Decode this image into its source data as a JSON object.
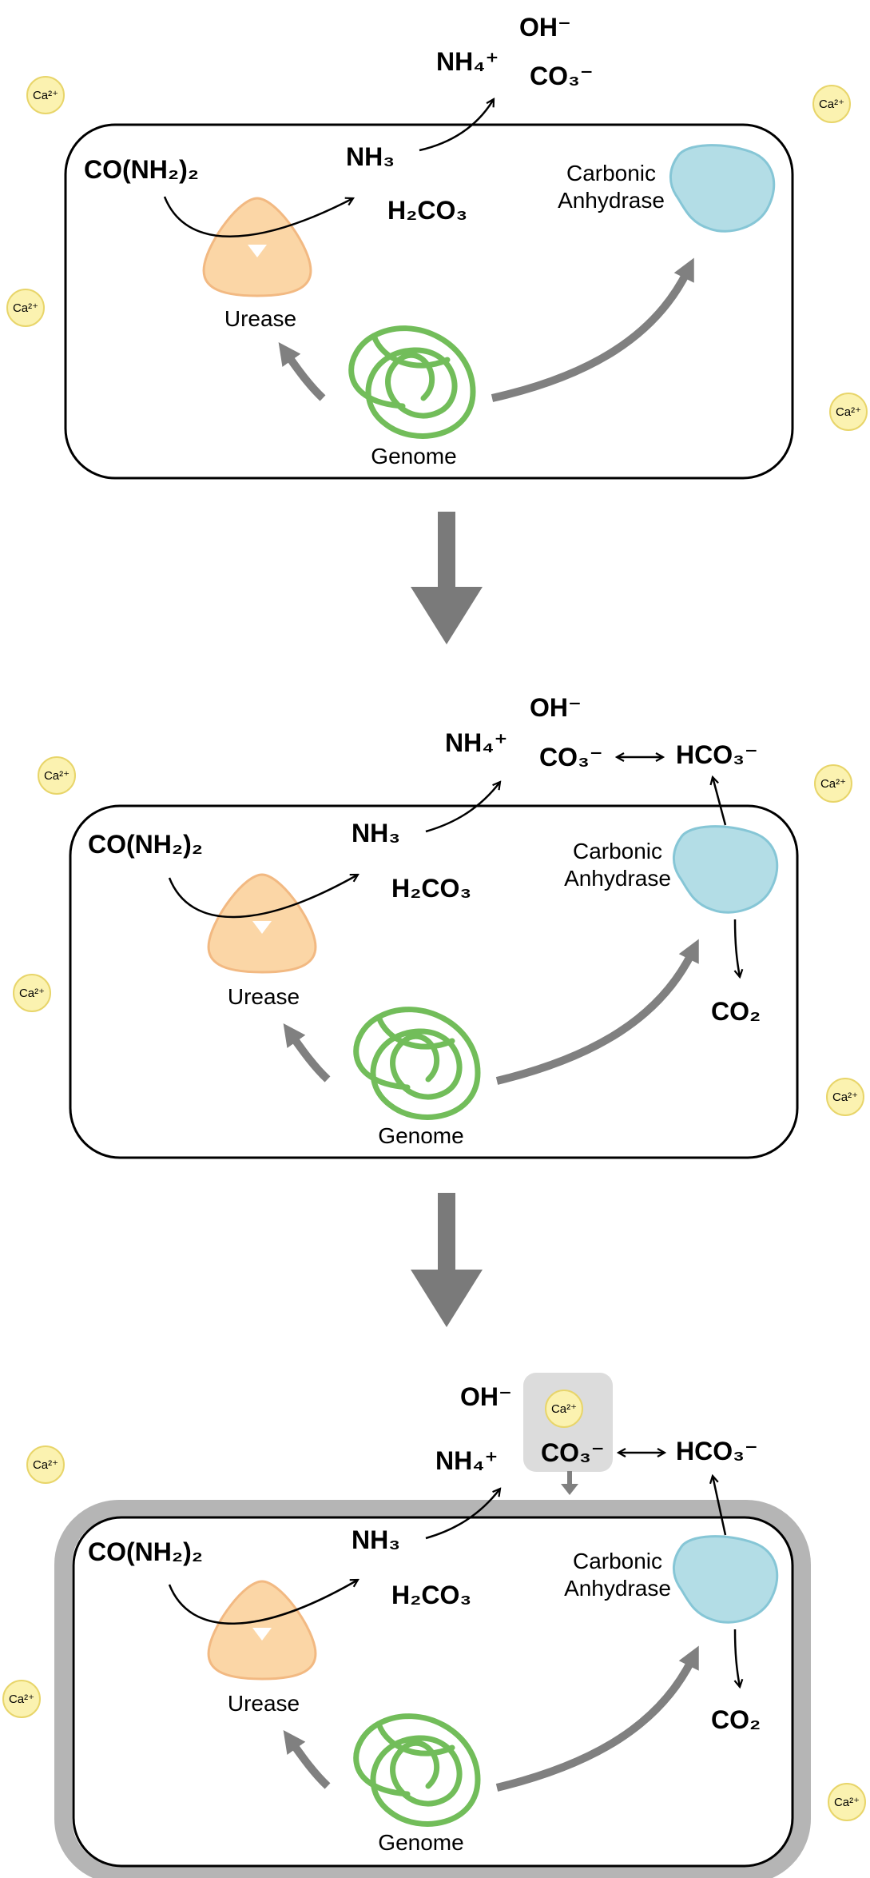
{
  "colors": {
    "urease_fill": "#fbd6a6",
    "urease_stroke": "#f2b982",
    "anhydrase_fill": "#b3dde6",
    "anhydrase_stroke": "#86c6d6",
    "genome": "#72bd5a",
    "gray_arrow": "#808080",
    "big_arrow": "#7a7a7a",
    "calcium_fill": "#fbf2b0",
    "calcium_stroke": "#e8d56a",
    "precipitate_shell": "#b5b5b5",
    "precipitate_box": "#dcdcdc"
  },
  "icons": [
    "urease-enzyme-icon",
    "carbonic-anhydrase-icon",
    "genome-icon",
    "calcium-ion-icon",
    "down-arrow-icon"
  ],
  "species": {
    "urea": "CO(NH₂)₂",
    "ammonia": "NH₃",
    "carbonic_acid": "H₂CO₃",
    "ammonium": "NH₄⁺",
    "hydroxide": "OH⁻",
    "carbonate": "CO₃⁻",
    "bicarbonate": "HCO₃⁻",
    "carbon_dioxide": "CO₂",
    "calcium": "Ca²⁺",
    "equilibrium": "⟷"
  },
  "labels": {
    "urease": "Urease",
    "genome": "Genome",
    "anhydrase_line1": "Carbonic",
    "anhydrase_line2": "Anhydrase"
  }
}
